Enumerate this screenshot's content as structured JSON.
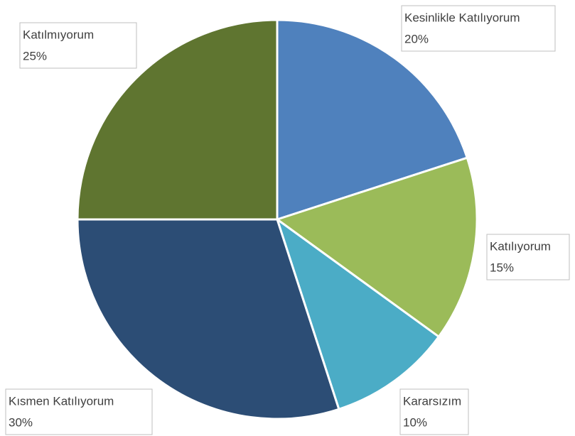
{
  "chart_data": {
    "type": "pie",
    "categories": [
      "Kesinlikle Katılıyorum",
      "Katılıyorum",
      "Kararsızım",
      "Kısmen Katılıyorum",
      "Katılmıyorum"
    ],
    "values": [
      20,
      15,
      10,
      30,
      25
    ],
    "value_labels": [
      "20%",
      "15%",
      "10%",
      "30%",
      "25%"
    ],
    "colors": [
      "#4f81bd",
      "#9bbb59",
      "#4bacc6",
      "#2c4d75",
      "#5f7530"
    ]
  }
}
